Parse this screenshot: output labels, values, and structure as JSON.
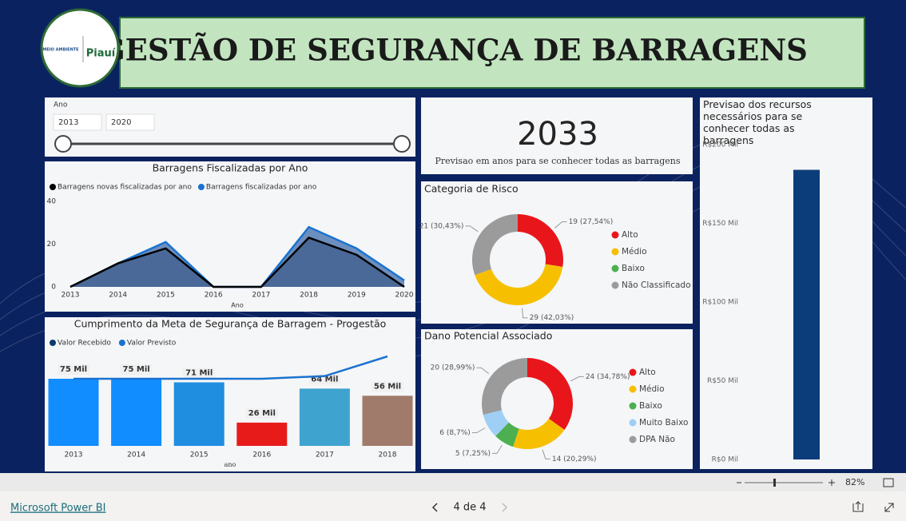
{
  "header": {
    "title": "GESTÃO DE SEGURANÇA DE BARRAGENS",
    "logo_left": "MEIO AMBIENTE",
    "logo_right": "Piauí"
  },
  "slicer": {
    "label": "Ano",
    "from": "2013",
    "to": "2020"
  },
  "kpi": {
    "value": 2033,
    "caption": "Previsao em anos para se conhecer todas as barragens"
  },
  "area_chart": {
    "type": "area",
    "title": "Barragens Fiscalizadas por Ano",
    "x_label": "Ano",
    "categories": [
      "2013",
      "2014",
      "2015",
      "2016",
      "2017",
      "2018",
      "2019",
      "2020"
    ],
    "series": [
      {
        "name": "Barragens novas fiscalizadas por ano",
        "color": "#000000",
        "values": [
          0,
          11,
          18,
          0,
          0,
          23,
          15,
          0
        ]
      },
      {
        "name": "Barragens fiscalizadas por ano",
        "color": "#1a73d0",
        "values": [
          0,
          11,
          21,
          0,
          0,
          28,
          18,
          3
        ]
      }
    ],
    "ylim": [
      0,
      40
    ],
    "yticks": [
      0,
      20,
      40
    ]
  },
  "meta_chart": {
    "type": "bar_line",
    "title": "Cumprimento da Meta de Segurança de Barragem - Progestão",
    "x_label": "ano",
    "categories": [
      "2013",
      "2014",
      "2015",
      "2016",
      "2017",
      "2018"
    ],
    "series": [
      {
        "name": "Valor Recebido",
        "color": "#0b3a6e",
        "values": [
          75,
          75,
          71,
          26,
          64,
          56
        ],
        "value_labels": [
          "75 Mil",
          "75 Mil",
          "71 Mil",
          "26 Mil",
          "64 Mil",
          "56 Mil"
        ],
        "bar_colors": [
          "#118dff",
          "#118dff",
          "#1f8ee0",
          "#e81b1b",
          "#3fa3d0",
          "#a07a6a"
        ]
      },
      {
        "name": "Valor Previsto",
        "color": "#1a73d0",
        "values": [
          75,
          75,
          75,
          75,
          78,
          100
        ]
      }
    ]
  },
  "risk_chart": {
    "type": "donut",
    "title": "Categoria de Risco",
    "categories": [
      "Alto",
      "Médio",
      "Baixo",
      "Não Classificado"
    ],
    "values": [
      19,
      29,
      0,
      21
    ],
    "value_labels": [
      "19 (27,54%)",
      "29 (42,03%)",
      null,
      "21 (30,43%)"
    ],
    "colors": [
      "#e8161b",
      "#f6c000",
      "#4caf50",
      "#9b9b9b"
    ]
  },
  "damage_chart": {
    "type": "donut",
    "title": "Dano Potencial Associado",
    "categories": [
      "Alto",
      "Médio",
      "Baixo",
      "Muito Baixo",
      "DPA Não"
    ],
    "values": [
      24,
      14,
      5,
      6,
      20
    ],
    "value_labels": [
      "24 (34,78%)",
      "14 (20,29%)",
      "5 (7,25%)",
      "6 (8,7%)",
      "20 (28,99%)"
    ],
    "colors": [
      "#e8161b",
      "#f6c000",
      "#4caf50",
      "#9fcff5",
      "#9b9b9b"
    ]
  },
  "resource_chart": {
    "type": "bar",
    "title": "Previsao dos recursos necessários para se conhecer todas as barragens",
    "values": [
      184
    ],
    "color": "#0b3d7a",
    "ylim": [
      0,
      200
    ],
    "yticks": [
      {
        "value": 0,
        "label": "R$0 Mil"
      },
      {
        "value": 50,
        "label": "R$50 Mil"
      },
      {
        "value": 100,
        "label": "R$100 Mil"
      },
      {
        "value": 150,
        "label": "R$150 Mil"
      },
      {
        "value": 200,
        "label": "R$200 Mil"
      }
    ]
  },
  "footer": {
    "brand": "Microsoft Power BI",
    "page": "4 de 4",
    "zoom": "82%"
  }
}
